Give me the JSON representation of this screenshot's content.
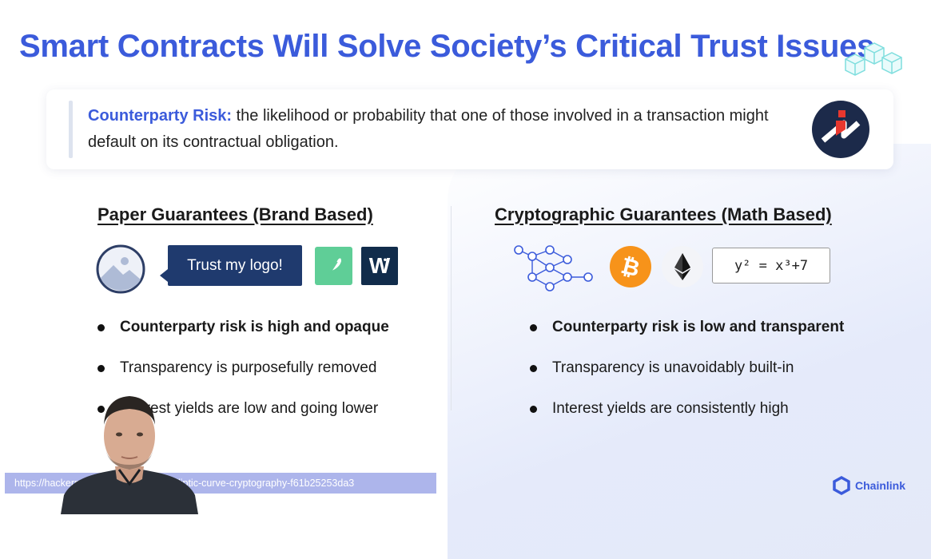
{
  "slide": {
    "title": "Smart Contracts Will Solve Society’s Critical Trust Issues",
    "definition": {
      "term": "Counterparty Risk:",
      "text": " the likelihood or probability that one of those involved in a transaction might default on its contractual obligation."
    },
    "left_column": {
      "title": "Paper Guarantees (Brand Based)",
      "badge_text": "Trust my logo!",
      "w_logo_text": "W",
      "bullets": [
        "Counterparty risk is high and opaque",
        "Transparency is purposefully removed",
        "Interest yields are low and going lower"
      ]
    },
    "right_column": {
      "title": "Cryptographic Guarantees (Math Based)",
      "equation": "y² = x³+7",
      "bullets": [
        "Counterparty risk is low and transparent",
        "Transparency is unavoidably built-in",
        "Interest yields are consistently high"
      ]
    },
    "brand": "Chainlink"
  },
  "status_url": "https://hackerno… …-math-behind-elliptic-curve-cryptography-f61b25253da3",
  "colors": {
    "title_blue": "#3b5bdb",
    "badge_navy": "#1f3a6e",
    "feather_green": "#5fce97",
    "bitcoin_orange": "#f7931a",
    "url_bar": "#96a0e6"
  },
  "icons": [
    "cubes-icon",
    "injective-logo-icon",
    "image-placeholder-icon",
    "feather-icon",
    "network-graph-icon",
    "bitcoin-icon",
    "ethereum-icon",
    "chainlink-hexagon-icon"
  ]
}
